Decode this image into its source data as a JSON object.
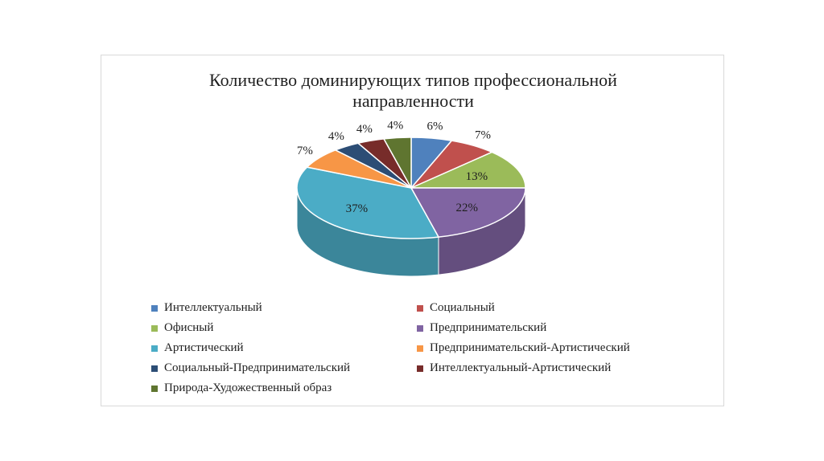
{
  "chart_data": {
    "type": "pie",
    "title_lines": [
      "Количество доминирующих типов профессиональной",
      "направленности"
    ],
    "slices": [
      {
        "name": "Интеллектуальный",
        "value": 6,
        "label": "6%",
        "color": "#4f81bd"
      },
      {
        "name": "Социальный",
        "value": 7,
        "label": "7%",
        "color": "#c0504d"
      },
      {
        "name": "Офисный",
        "value": 13,
        "label": "13%",
        "color": "#9bbb59"
      },
      {
        "name": "Предпринимательский",
        "value": 22,
        "label": "22%",
        "color": "#8064a2"
      },
      {
        "name": "Артистический",
        "value": 37,
        "label": "37%",
        "color": "#4bacc6"
      },
      {
        "name": "Предпринимательский-Артистический",
        "value": 7,
        "label": "7%",
        "color": "#f79646"
      },
      {
        "name": "Социальный-Предпринимательский",
        "value": 4,
        "label": "4%",
        "color": "#2c4d75"
      },
      {
        "name": "Интеллектуальный-Артистический",
        "value": 4,
        "label": "4%",
        "color": "#772c2a"
      },
      {
        "name": "Природа-Художественный образ",
        "value": 4,
        "label": "4%",
        "color": "#5f7530"
      }
    ],
    "legend_position": "bottom"
  }
}
